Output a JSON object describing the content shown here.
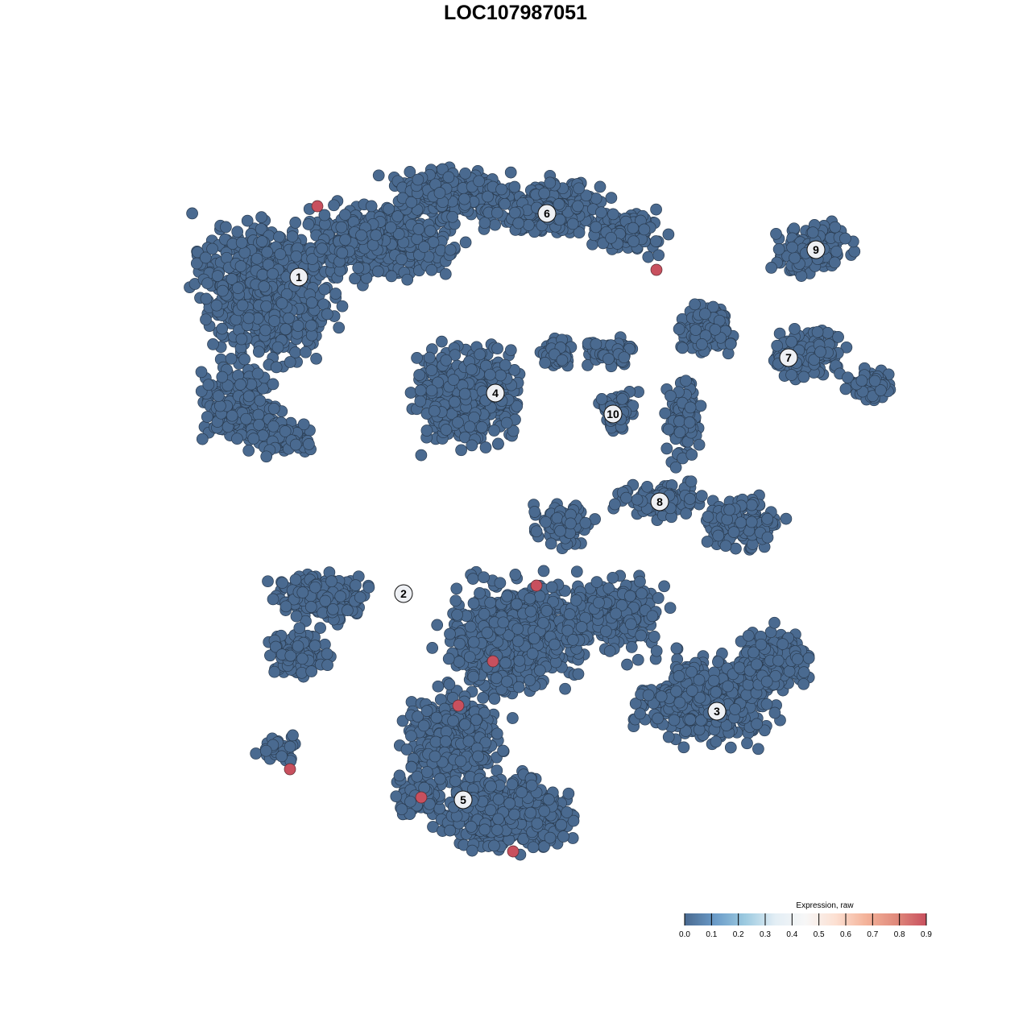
{
  "chart_data": {
    "type": "scatter",
    "title": "LOC107987051",
    "xlabel": "",
    "ylabel": "",
    "grid": false,
    "point_color_default": "#4a6a90",
    "point_color_high": "#c8505e",
    "clusters": [
      {
        "id": "1"
      },
      {
        "id": "2"
      },
      {
        "id": "3"
      },
      {
        "id": "4"
      },
      {
        "id": "5"
      },
      {
        "id": "6"
      },
      {
        "id": "7"
      },
      {
        "id": "8"
      },
      {
        "id": "9"
      },
      {
        "id": "10"
      }
    ],
    "high_expression_cells": {
      "count": 8,
      "value": 0.9
    },
    "colorbar": {
      "title": "Expression, raw",
      "range": [
        0,
        0.9
      ],
      "ticks": [
        "0.0",
        "0.1",
        "0.2",
        "0.3",
        "0.4",
        "0.5",
        "0.6",
        "0.7",
        "0.8",
        "0.9"
      ],
      "colors": [
        "#4a6a90",
        "#6a9bc8",
        "#9ccae0",
        "#e3eef5",
        "#f7f7f7",
        "#fce0d2",
        "#f4b39a",
        "#e08a7c",
        "#c8505e"
      ],
      "placement": "bottom-right"
    }
  }
}
